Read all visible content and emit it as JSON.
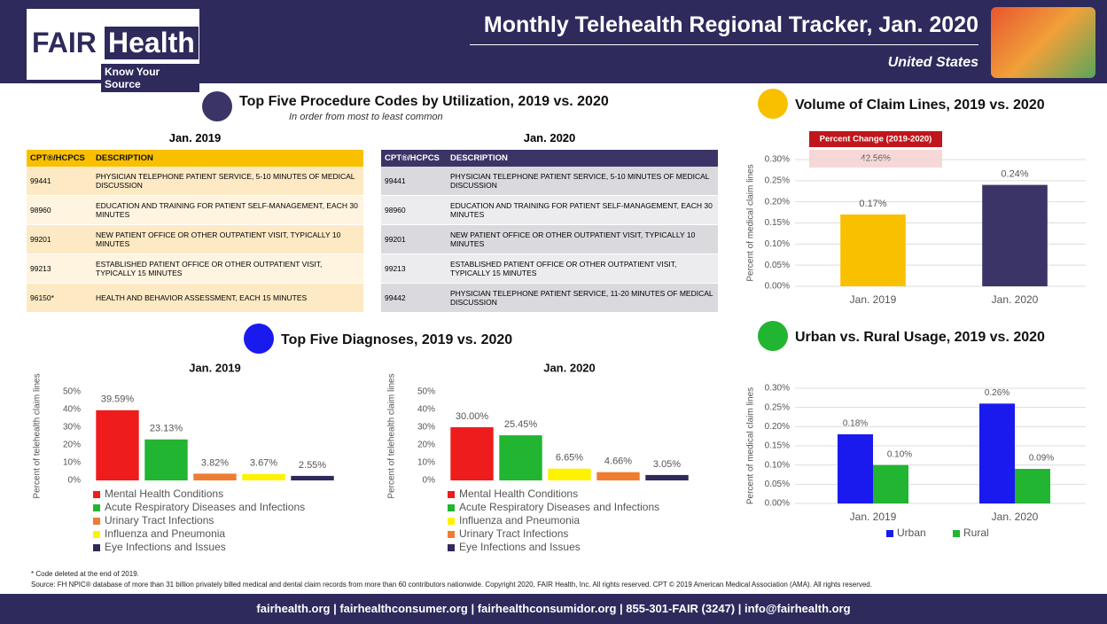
{
  "header": {
    "brand_a": "FAIR",
    "brand_b": "Health",
    "tagline": "Know Your Source",
    "title": "Monthly Telehealth Regional Tracker, Jan. 2020",
    "region": "United States"
  },
  "procedures": {
    "title": "Top Five Procedure Codes by Utilization, 2019 vs. 2020",
    "subtitle": "In order from most to least common",
    "tables": [
      {
        "label": "Jan. 2019",
        "columns": [
          "CPT®/HCPCS",
          "DESCRIPTION"
        ],
        "rows": [
          [
            "99441",
            "PHYSICIAN TELEPHONE PATIENT SERVICE, 5-10 MINUTES OF MEDICAL DISCUSSION"
          ],
          [
            "98960",
            "EDUCATION AND TRAINING FOR PATIENT SELF-MANAGEMENT, EACH 30 MINUTES"
          ],
          [
            "99201",
            "NEW PATIENT OFFICE OR OTHER OUTPATIENT VISIT, TYPICALLY 10 MINUTES"
          ],
          [
            "99213",
            "ESTABLISHED PATIENT OFFICE OR OTHER OUTPATIENT VISIT, TYPICALLY 15 MINUTES"
          ],
          [
            "96150*",
            "HEALTH AND BEHAVIOR ASSESSMENT, EACH 15 MINUTES"
          ]
        ]
      },
      {
        "label": "Jan. 2020",
        "columns": [
          "CPT®/HCPCS",
          "DESCRIPTION"
        ],
        "rows": [
          [
            "99441",
            "PHYSICIAN TELEPHONE PATIENT SERVICE, 5-10 MINUTES OF MEDICAL DISCUSSION"
          ],
          [
            "98960",
            "EDUCATION AND TRAINING FOR PATIENT SELF-MANAGEMENT, EACH 30 MINUTES"
          ],
          [
            "99201",
            "NEW PATIENT OFFICE OR OTHER OUTPATIENT VISIT, TYPICALLY 10 MINUTES"
          ],
          [
            "99213",
            "ESTABLISHED PATIENT OFFICE OR OTHER OUTPATIENT VISIT, TYPICALLY 15 MINUTES"
          ],
          [
            "99442",
            "PHYSICIAN TELEPHONE PATIENT SERVICE, 11-20 MINUTES OF MEDICAL DISCUSSION"
          ]
        ]
      }
    ]
  },
  "diagnoses": {
    "title": "Top Five Diagnoses, 2019 vs. 2020"
  },
  "chart_data": [
    {
      "type": "bar",
      "title": "Volume of Claim Lines, 2019 vs. 2020",
      "annotation_title": "Percent Change (2019-2020)",
      "annotation_value": "42.56%",
      "y_label": "Percent of medical claim lines",
      "categories": [
        "Jan. 2019",
        "Jan. 2020"
      ],
      "values": [
        0.17,
        0.24
      ],
      "value_labels": [
        "0.17%",
        "0.24%"
      ],
      "colors": [
        "#f9c000",
        "#3b3567"
      ],
      "ylim": [
        0,
        0.3
      ],
      "yticks": [
        {
          "value": 0,
          "label": "0.00%"
        },
        {
          "value": 0.05,
          "label": "0.05%"
        },
        {
          "value": 0.1,
          "label": "0.10%"
        },
        {
          "value": 0.15,
          "label": "0.15%"
        },
        {
          "value": 0.2,
          "label": "0.20%"
        },
        {
          "value": 0.25,
          "label": "0.25%"
        },
        {
          "value": 0.3,
          "label": "0.30%"
        }
      ],
      "grid": true
    },
    {
      "type": "bar",
      "title": "Jan. 2019",
      "y_label": "Percent of telehealth claim lines",
      "categories": [
        "Mental Health Conditions",
        "Acute Respiratory Diseases and Infections",
        "Urinary Tract Infections",
        "Influenza and Pneumonia",
        "Eye Infections and Issues"
      ],
      "values": [
        39.59,
        23.13,
        3.82,
        3.67,
        2.55
      ],
      "value_labels": [
        "39.59%",
        "23.13%",
        "3.82%",
        "3.67%",
        "2.55%"
      ],
      "colors": [
        "#ee1c1c",
        "#22b532",
        "#ef7d31",
        "#fff200",
        "#2e2a5c"
      ],
      "ylim": [
        0,
        50
      ],
      "yticks": [
        {
          "value": 0,
          "label": "0%"
        },
        {
          "value": 10,
          "label": "10%"
        },
        {
          "value": 20,
          "label": "20%"
        },
        {
          "value": 30,
          "label": "30%"
        },
        {
          "value": 40,
          "label": "40%"
        },
        {
          "value": 50,
          "label": "50%"
        }
      ],
      "grid": false
    },
    {
      "type": "bar",
      "title": "Jan. 2020",
      "y_label": "Percent of telehealth claim lines",
      "categories": [
        "Mental Health Conditions",
        "Acute Respiratory Diseases and Infections",
        "Influenza and Pneumonia",
        "Urinary Tract Infections",
        "Eye Infections and Issues"
      ],
      "values": [
        30.0,
        25.45,
        6.65,
        4.66,
        3.05
      ],
      "value_labels": [
        "30.00%",
        "25.45%",
        "6.65%",
        "4.66%",
        "3.05%"
      ],
      "colors": [
        "#ee1c1c",
        "#22b532",
        "#fff200",
        "#ef7d31",
        "#2e2a5c"
      ],
      "ylim": [
        0,
        50
      ],
      "yticks": [
        {
          "value": 0,
          "label": "0%"
        },
        {
          "value": 10,
          "label": "10%"
        },
        {
          "value": 20,
          "label": "20%"
        },
        {
          "value": 30,
          "label": "30%"
        },
        {
          "value": 40,
          "label": "40%"
        },
        {
          "value": 50,
          "label": "50%"
        }
      ],
      "grid": false
    },
    {
      "type": "grouped_bar",
      "title": "Urban vs. Rural Usage, 2019 vs. 2020",
      "y_label": "Percent of medical claim lines",
      "categories": [
        "Jan. 2019",
        "Jan. 2020"
      ],
      "series": [
        {
          "name": "Urban",
          "color": "#1a1aee",
          "values": [
            0.18,
            0.26
          ],
          "value_labels": [
            "0.18%",
            "0.26%"
          ]
        },
        {
          "name": "Rural",
          "color": "#22b532",
          "values": [
            0.1,
            0.09
          ],
          "value_labels": [
            "0.10%",
            "0.09%"
          ]
        }
      ],
      "ylim": [
        0,
        0.3
      ],
      "yticks": [
        {
          "value": 0,
          "label": "0.00%"
        },
        {
          "value": 0.05,
          "label": "0.05%"
        },
        {
          "value": 0.1,
          "label": "0.10%"
        },
        {
          "value": 0.15,
          "label": "0.15%"
        },
        {
          "value": 0.2,
          "label": "0.20%"
        },
        {
          "value": 0.25,
          "label": "0.25%"
        },
        {
          "value": 0.3,
          "label": "0.30%"
        }
      ],
      "grid": true
    }
  ],
  "footnotes": [
    "* Code deleted at the end of 2019.",
    "Source: FH NPIC® database of more than 31 billion privately billed medical and dental claim records from more than 60 contributors nationwide. Copyright 2020, FAIR Health, Inc. All rights reserved. CPT © 2019 American Medical Association (AMA). All rights reserved."
  ],
  "footer": "fairhealth.org | fairhealthconsumer.org | fairhealthconsumidor.org | 855-301-FAIR (3247) | info@fairhealth.org"
}
